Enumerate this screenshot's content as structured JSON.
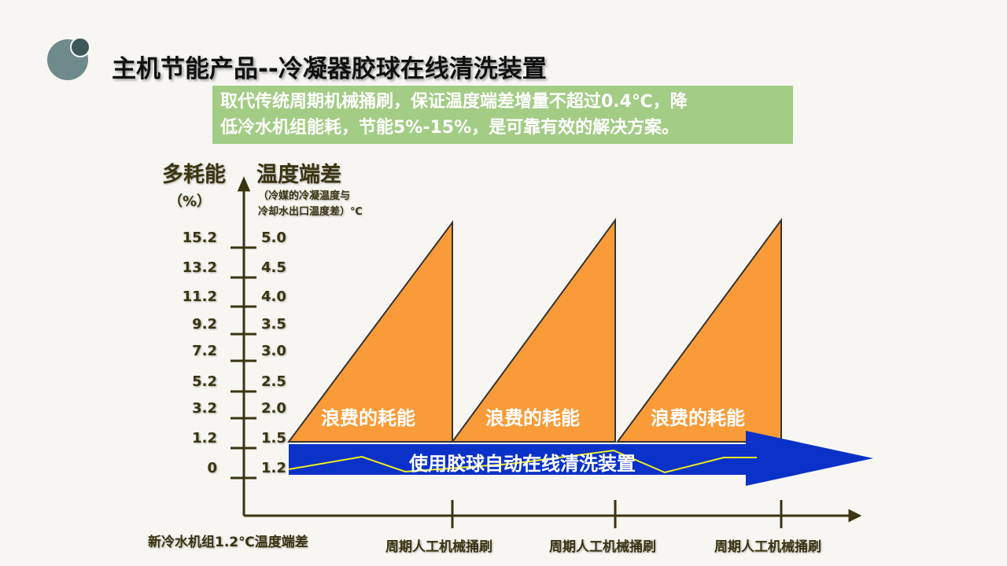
{
  "title": "主机节能产品--冷凝器胶球在线清洗装置",
  "banner": {
    "line1": "取代传统周期机械捅刷，保证温度端差增量不超过0.4℃，降",
    "line2": "低冷水机组能耗，节能5%-15%，是可靠有效的解决方案。"
  },
  "axis": {
    "left_title": "多耗能",
    "left_unit": "（%）",
    "right_title": "温度端差",
    "right_sub1": "（冷媒的冷凝温度与",
    "right_sub2": "冷却水出口温度差）℃",
    "left_ticks": [
      "15.2",
      "13.2",
      "11.2",
      "9.2",
      "7.2",
      "5.2",
      "3.2",
      "1.2",
      "0"
    ],
    "right_ticks": [
      "5.0",
      "4.5",
      "4.0",
      "3.5",
      "3.0",
      "2.5",
      "2.0",
      "1.5",
      "1.2"
    ]
  },
  "x_labels": [
    "新冷水机组1.2℃温度端差",
    "周期人工机械捅刷",
    "周期人工机械捅刷",
    "周期人工机械捅刷"
  ],
  "waste_labels": [
    "浪费的耗能",
    "浪费的耗能",
    "浪费的耗能"
  ],
  "arrow_label": "使用胶球自动在线清洗装置",
  "colors": {
    "triangle": "#f99b38",
    "arrow": "#0a32c8",
    "line": "#f2ee1c",
    "banner": "#a3cc85"
  }
}
